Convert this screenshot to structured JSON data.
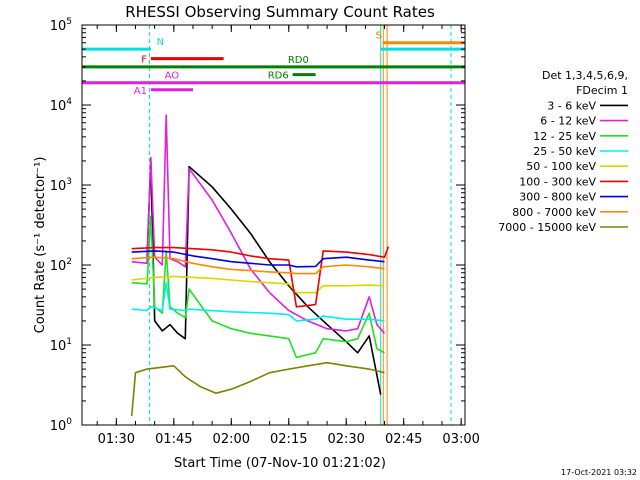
{
  "chart_data": {
    "type": "line",
    "title": "RHESSI Observing Summary Count Rates",
    "xlabel": "Start Time (07-Nov-10 01:21:02)",
    "ylabel": "Count Rate (s⁻¹ detector⁻¹)",
    "x_range": [
      "01:21:02",
      "03:01:00"
    ],
    "x_ticks": [
      "01:30",
      "01:45",
      "02:00",
      "02:15",
      "02:30",
      "02:45",
      "03:00"
    ],
    "y_scale": "log",
    "y_range": [
      1,
      100000
    ],
    "y_ticks": [
      {
        "base": "10",
        "exp": "0"
      },
      {
        "base": "10",
        "exp": "1"
      },
      {
        "base": "10",
        "exp": "2"
      },
      {
        "base": "10",
        "exp": "3"
      },
      {
        "base": "10",
        "exp": "4"
      },
      {
        "base": "10",
        "exp": "5"
      }
    ],
    "legend": {
      "placement": "right",
      "header1": "Det 1,3,4,5,6,9,",
      "header2": "FDecim 1"
    },
    "series": [
      {
        "name": "3 - 6 keV",
        "color": "#000000",
        "points": [
          [
            "01:21:02",
            null
          ],
          [
            "01:34:00",
            null
          ],
          [
            "01:38:00",
            120
          ],
          [
            "01:39:00",
            2000
          ],
          [
            "01:40:00",
            20
          ],
          [
            "01:42:00",
            15
          ],
          [
            "01:44:00",
            18
          ],
          [
            "01:46:00",
            14
          ],
          [
            "01:48:00",
            12
          ],
          [
            "01:49:00",
            1700
          ],
          [
            "01:55:00",
            950
          ],
          [
            "02:00:00",
            500
          ],
          [
            "02:05:00",
            250
          ],
          [
            "02:10:00",
            110
          ],
          [
            "02:15:00",
            55
          ],
          [
            "02:20:00",
            30
          ],
          [
            "02:25:00",
            18
          ],
          [
            "02:30:00",
            11
          ],
          [
            "02:33:00",
            8
          ],
          [
            "02:36:00",
            13
          ],
          [
            "02:39:00",
            2.4
          ],
          [
            "02:40:00",
            null
          ]
        ]
      },
      {
        "name": "6 - 12 keV",
        "color": "#e020e0",
        "points": [
          [
            "01:34:00",
            110
          ],
          [
            "01:38:00",
            105
          ],
          [
            "01:39:00",
            2200
          ],
          [
            "01:40:00",
            125
          ],
          [
            "01:42:00",
            100
          ],
          [
            "01:43:00",
            7500
          ],
          [
            "01:44:00",
            120
          ],
          [
            "01:46:00",
            110
          ],
          [
            "01:48:00",
            95
          ],
          [
            "01:49:00",
            1600
          ],
          [
            "01:55:00",
            650
          ],
          [
            "02:00:00",
            250
          ],
          [
            "02:05:00",
            90
          ],
          [
            "02:10:00",
            45
          ],
          [
            "02:15:00",
            27
          ],
          [
            "02:20:00",
            20
          ],
          [
            "02:25:00",
            16
          ],
          [
            "02:30:00",
            15
          ],
          [
            "02:33:00",
            16
          ],
          [
            "02:36:00",
            40
          ],
          [
            "02:38:00",
            18
          ],
          [
            "02:40:00",
            14
          ]
        ]
      },
      {
        "name": "12 - 25 keV",
        "color": "#20e020",
        "points": [
          [
            "01:34:00",
            60
          ],
          [
            "01:38:00",
            58
          ],
          [
            "01:39:00",
            400
          ],
          [
            "01:40:00",
            30
          ],
          [
            "01:42:00",
            25
          ],
          [
            "01:43:00",
            150
          ],
          [
            "01:44:00",
            30
          ],
          [
            "01:46:00",
            25
          ],
          [
            "01:48:00",
            22
          ],
          [
            "01:49:00",
            50
          ],
          [
            "01:55:00",
            20
          ],
          [
            "02:00:00",
            16
          ],
          [
            "02:05:00",
            14
          ],
          [
            "02:10:00",
            13
          ],
          [
            "02:15:00",
            12
          ],
          [
            "02:17:00",
            7
          ],
          [
            "02:22:00",
            8
          ],
          [
            "02:24:00",
            12
          ],
          [
            "02:30:00",
            11
          ],
          [
            "02:33:00",
            12
          ],
          [
            "02:36:00",
            25
          ],
          [
            "02:38:00",
            9
          ],
          [
            "02:40:00",
            8
          ]
        ]
      },
      {
        "name": "25 - 50 keV",
        "color": "#00f0f0",
        "points": [
          [
            "01:34:00",
            28
          ],
          [
            "01:38:00",
            27
          ],
          [
            "01:39:00",
            30
          ],
          [
            "01:42:00",
            27
          ],
          [
            "01:43:00",
            60
          ],
          [
            "01:44:00",
            28
          ],
          [
            "01:48:00",
            27
          ],
          [
            "01:49:00",
            28
          ],
          [
            "02:00:00",
            26
          ],
          [
            "02:10:00",
            25
          ],
          [
            "02:15:00",
            24
          ],
          [
            "02:17:00",
            20
          ],
          [
            "02:22:00",
            21
          ],
          [
            "02:24:00",
            23
          ],
          [
            "02:30:00",
            21
          ],
          [
            "02:36:00",
            21
          ],
          [
            "02:40:00",
            20
          ]
        ]
      },
      {
        "name": "50 - 100 keV",
        "color": "#d8d800",
        "points": [
          [
            "01:34:00",
            65
          ],
          [
            "01:40:00",
            70
          ],
          [
            "01:45:00",
            72
          ],
          [
            "01:50:00",
            70
          ],
          [
            "01:55:00",
            68
          ],
          [
            "02:00:00",
            65
          ],
          [
            "02:05:00",
            62
          ],
          [
            "02:10:00",
            60
          ],
          [
            "02:15:00",
            58
          ],
          [
            "02:17:00",
            45
          ],
          [
            "02:22:00",
            45
          ],
          [
            "02:24:00",
            55
          ],
          [
            "02:30:00",
            55
          ],
          [
            "02:36:00",
            56
          ],
          [
            "02:40:00",
            55
          ]
        ]
      },
      {
        "name": "100 - 300 keV",
        "color": "#ee0000",
        "points": [
          [
            "01:34:00",
            160
          ],
          [
            "01:40:00",
            165
          ],
          [
            "01:45:00",
            165
          ],
          [
            "01:50:00",
            160
          ],
          [
            "01:55:00",
            155
          ],
          [
            "02:00:00",
            145
          ],
          [
            "02:05:00",
            130
          ],
          [
            "02:10:00",
            120
          ],
          [
            "02:15:00",
            115
          ],
          [
            "02:17:00",
            30
          ],
          [
            "02:22:00",
            32
          ],
          [
            "02:24:00",
            150
          ],
          [
            "02:30:00",
            145
          ],
          [
            "02:36:00",
            135
          ],
          [
            "02:40:00",
            125
          ],
          [
            "02:41:00",
            170
          ]
        ]
      },
      {
        "name": "300 - 800 keV",
        "color": "#0000dd",
        "points": [
          [
            "01:34:00",
            145
          ],
          [
            "01:40:00",
            150
          ],
          [
            "01:45:00",
            145
          ],
          [
            "01:50:00",
            130
          ],
          [
            "01:55:00",
            120
          ],
          [
            "02:00:00",
            110
          ],
          [
            "02:05:00",
            105
          ],
          [
            "02:10:00",
            100
          ],
          [
            "02:15:00",
            100
          ],
          [
            "02:17:00",
            95
          ],
          [
            "02:22:00",
            96
          ],
          [
            "02:24:00",
            120
          ],
          [
            "02:30:00",
            125
          ],
          [
            "02:36:00",
            115
          ],
          [
            "02:40:00",
            110
          ]
        ]
      },
      {
        "name": "800 - 7000 keV",
        "color": "#ff8800",
        "points": [
          [
            "01:34:00",
            120
          ],
          [
            "01:40:00",
            125
          ],
          [
            "01:45:00",
            120
          ],
          [
            "01:50:00",
            105
          ],
          [
            "01:55:00",
            95
          ],
          [
            "02:00:00",
            88
          ],
          [
            "02:05:00",
            85
          ],
          [
            "02:10:00",
            82
          ],
          [
            "02:15:00",
            80
          ],
          [
            "02:17:00",
            78
          ],
          [
            "02:22:00",
            78
          ],
          [
            "02:24:00",
            95
          ],
          [
            "02:30:00",
            100
          ],
          [
            "02:36:00",
            95
          ],
          [
            "02:40:00",
            90
          ]
        ]
      },
      {
        "name": "7000 - 15000 keV",
        "color": "#808000",
        "points": [
          [
            "01:34:00",
            1.3
          ],
          [
            "01:35:00",
            4.5
          ],
          [
            "01:38:00",
            5
          ],
          [
            "01:45:00",
            5.5
          ],
          [
            "01:48:00",
            4
          ],
          [
            "01:52:00",
            3
          ],
          [
            "01:56:00",
            2.5
          ],
          [
            "02:00:00",
            2.8
          ],
          [
            "02:05:00",
            3.5
          ],
          [
            "02:10:00",
            4.5
          ],
          [
            "02:15:00",
            5
          ],
          [
            "02:20:00",
            5.5
          ],
          [
            "02:25:00",
            6
          ],
          [
            "02:30:00",
            5.5
          ],
          [
            "02:36:00",
            5
          ],
          [
            "02:40:00",
            4.5
          ]
        ]
      }
    ],
    "flag_bars": [
      {
        "label": "N",
        "label_color": "#00e0e0",
        "color": "#00e0e0",
        "y": 50000,
        "segments": [
          [
            "01:21:02",
            "01:39:00"
          ],
          [
            "02:39:00",
            "03:01:00"
          ]
        ],
        "label_at": "01:40:30",
        "label_side": "above",
        "label_anchor": "start"
      },
      {
        "label": "S",
        "label_color": "#d08000",
        "color": "#ff8800",
        "y": 60000,
        "segments": [
          [
            "02:39:30",
            "03:01:00"
          ]
        ],
        "label_at": "02:38:30",
        "label_side": "above",
        "label_anchor": "middle"
      },
      {
        "label": "F",
        "label_color": "#ee0000",
        "color": "#ee0000",
        "y": 38000,
        "segments": [
          [
            "01:39:00",
            "01:58:00"
          ]
        ],
        "label_at": "01:38:00",
        "label_side": "left",
        "label_anchor": "end"
      },
      {
        "label": "RD0",
        "label_color": "#008000",
        "color": "#008000",
        "y": 30000,
        "segments": [
          [
            "01:21:02",
            "03:01:00"
          ]
        ],
        "label_at": "02:17:30",
        "label_side": "above",
        "label_anchor": "middle"
      },
      {
        "label": "RD6",
        "label_color": "#008000",
        "color": "#008000",
        "y": 24000,
        "segments": [
          [
            "02:16:00",
            "02:22:00"
          ]
        ],
        "label_at": "02:15:00",
        "label_side": "left",
        "label_anchor": "end"
      },
      {
        "label": "AO",
        "label_color": "#e020e0",
        "color": "#e020e0",
        "y": 19000,
        "segments": [
          [
            "01:21:02",
            "03:01:00"
          ]
        ],
        "label_at": "01:44:30",
        "label_side": "above",
        "label_anchor": "middle"
      },
      {
        "label": "A1",
        "label_color": "#e020e0",
        "color": "#e020e0",
        "y": 15500,
        "segments": [
          [
            "01:39:00",
            "01:50:00"
          ]
        ],
        "label_at": "01:38:00",
        "label_side": "left",
        "label_anchor": "end"
      }
    ],
    "vlines": [
      {
        "t": "01:38:40",
        "color": "#00e0e0",
        "dashed": true
      },
      {
        "t": "02:39:00",
        "color": "#00e0e0",
        "dashed": false
      },
      {
        "t": "02:39:40",
        "color": "#ff8800",
        "dashed": false
      },
      {
        "t": "02:40:40",
        "color": "#ff8800",
        "dashed": false
      },
      {
        "t": "02:57:20",
        "color": "#00e0e0",
        "dashed": true
      }
    ],
    "footer": "17-Oct-2021 03:32"
  }
}
